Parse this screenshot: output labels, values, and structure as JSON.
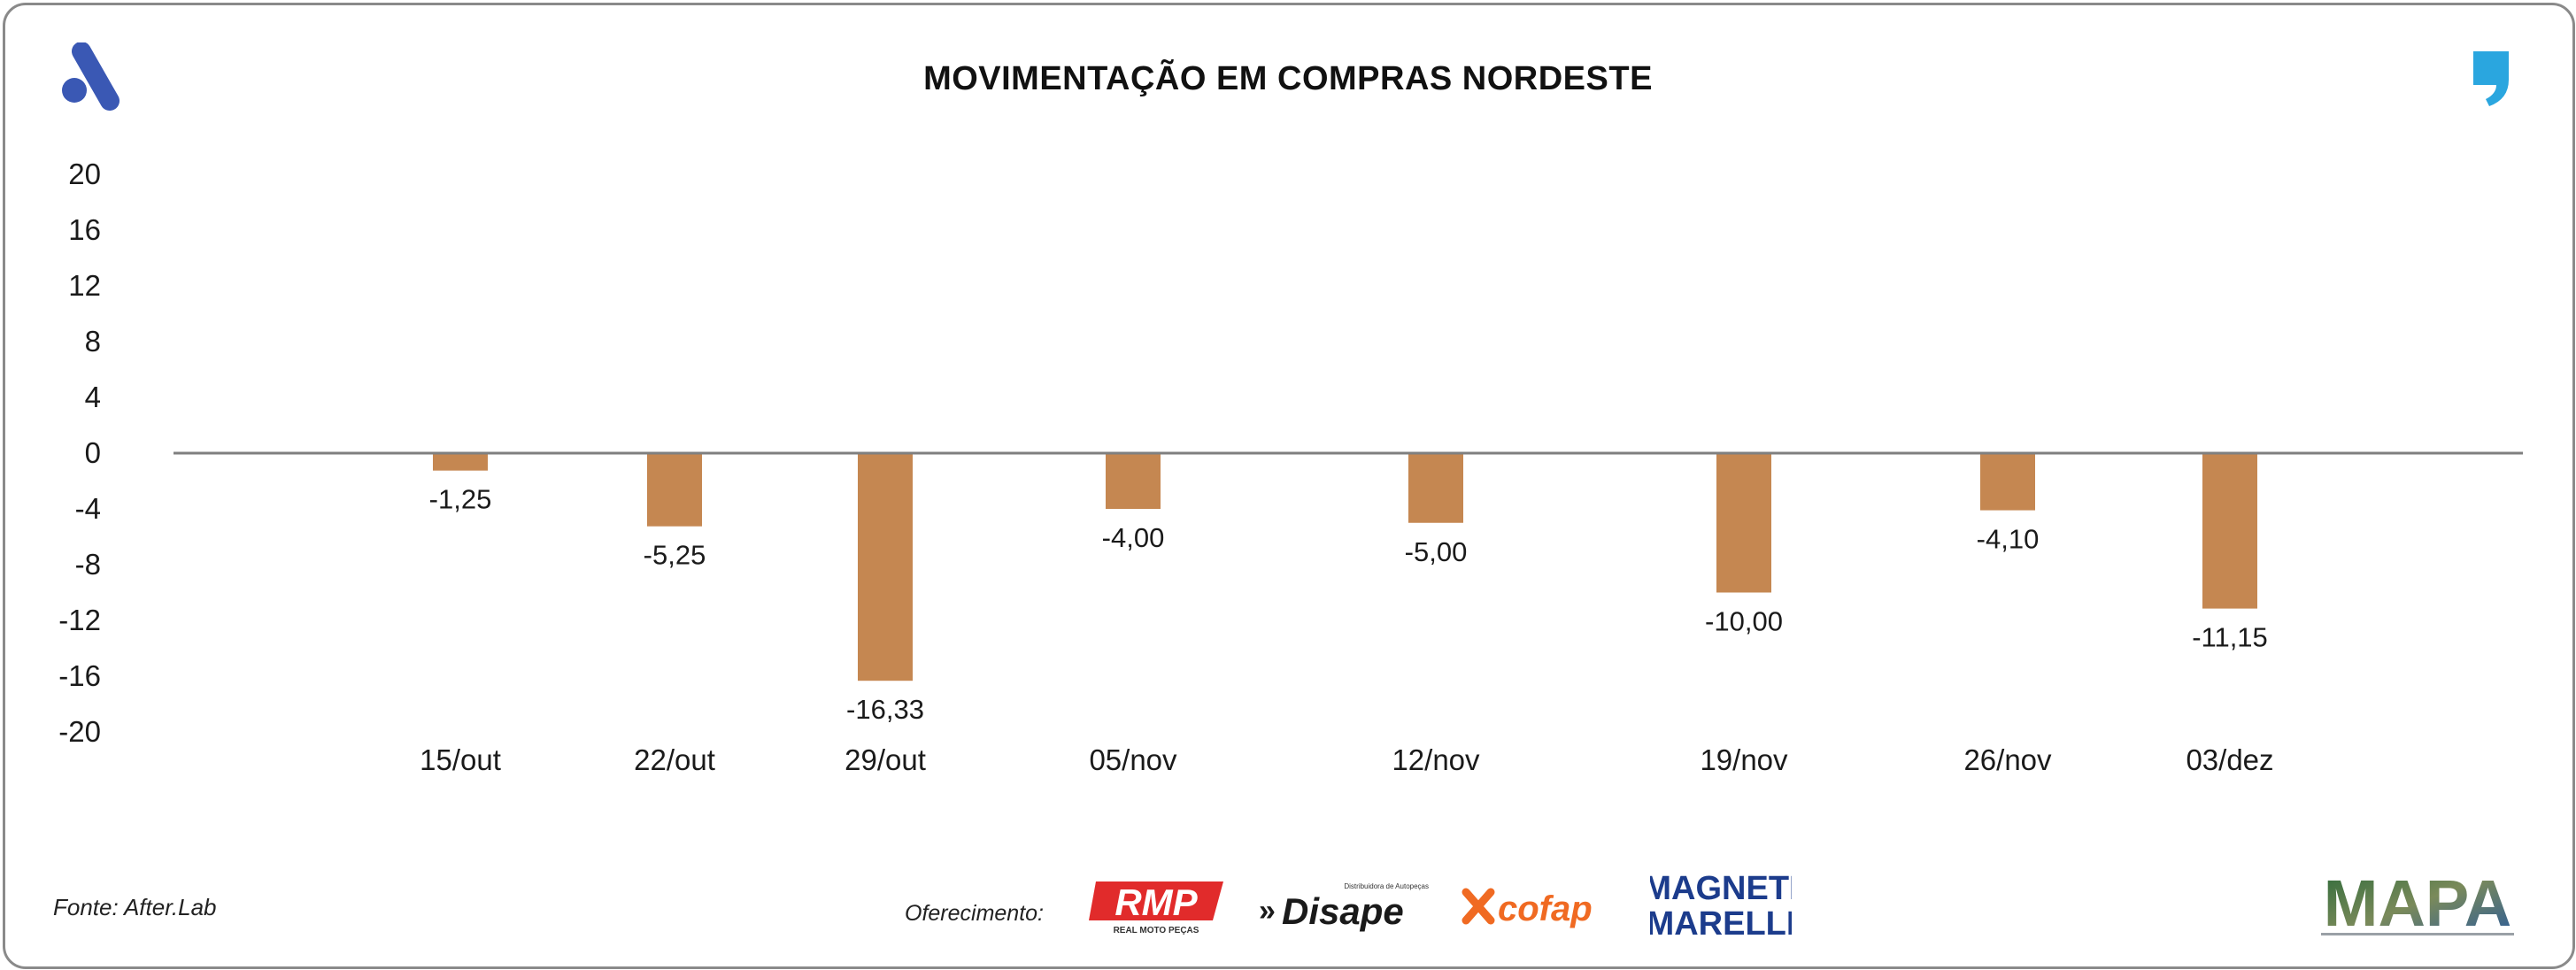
{
  "title": "MOVIMENTAÇÃO EM COMPRAS NORDESTE",
  "source": "Fonte: After.Lab",
  "sponsor_label": "Oferecimento:",
  "logos": {
    "rmp": "RMP",
    "rmp_sub": "REAL MOTO PEÇAS",
    "disape": "Disape",
    "disape_sub": "Distribuidora de Autopeças",
    "cofap": "cofap",
    "mm_line1": "MAGNETI",
    "mm_line2": "MARELLI",
    "mapa": "MAPA"
  },
  "colors": {
    "bar": "#c58751",
    "zero_line": "#7f7f7f",
    "brand_blue": "#3a58b4",
    "brand_cyan": "#2aa6df"
  },
  "chart_data": {
    "type": "bar",
    "title": "MOVIMENTAÇÃO EM COMPRAS NORDESTE",
    "categories": [
      "15/out",
      "22/out",
      "29/out",
      "05/nov",
      "12/nov",
      "19/nov",
      "26/nov",
      "03/dez"
    ],
    "values": [
      -1.25,
      -5.25,
      -16.33,
      -4.0,
      -5.0,
      -10.0,
      -4.1,
      -11.15
    ],
    "value_labels": [
      "-1,25",
      "-5,25",
      "-16,33",
      "-4,00",
      "-5,00",
      "-10,00",
      "-4,10",
      "-11,15"
    ],
    "y_ticks": [
      20,
      16,
      12,
      8,
      4,
      0,
      -4,
      -8,
      -12,
      -16,
      -20
    ],
    "y_tick_labels": [
      "20",
      "16",
      "12",
      "8",
      "4",
      "0",
      "-4",
      "-8",
      "-12",
      "-16",
      "-20"
    ],
    "ylim": [
      -20,
      20
    ],
    "grid": false,
    "legend": "none"
  }
}
